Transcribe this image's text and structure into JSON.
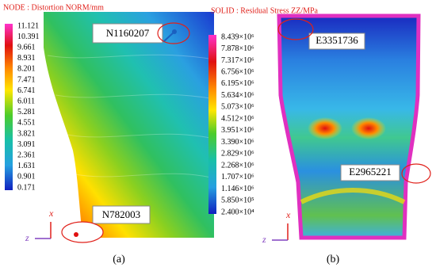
{
  "panel_a": {
    "legend_title": "NODE : Distortion NORM/mm",
    "legend_labels": [
      "11.121",
      "10.391",
      "9.661",
      "8.931",
      "8.201",
      "7.471",
      "6.741",
      "6.011",
      "5.281",
      "4.551",
      "3.821",
      "3.091",
      "2.361",
      "1.631",
      "0.901",
      "0.171"
    ],
    "annotations": [
      "N1160207",
      "N782003"
    ],
    "axis_labels": [
      "x",
      "z"
    ],
    "caption": "(a)"
  },
  "panel_b": {
    "legend_title": "SOLID : Residual Stress ZZ/MPa",
    "legend_labels": [
      "8.439×10⁶",
      "7.878×10⁶",
      "7.317×10⁶",
      "6.756×10⁶",
      "6.195×10⁶",
      "5.634×10⁶",
      "5.073×10⁶",
      "4.512×10⁶",
      "3.951×10⁶",
      "3.390×10⁶",
      "2.829×10⁶",
      "2.268×10⁶",
      "1.707×10⁶",
      "1.146×10⁶",
      "5.850×10⁵",
      "2.400×10⁴"
    ],
    "annotations": [
      "E3351736",
      "E2965221"
    ],
    "axis_labels": [
      "x",
      "z"
    ],
    "caption": "(b)"
  }
}
